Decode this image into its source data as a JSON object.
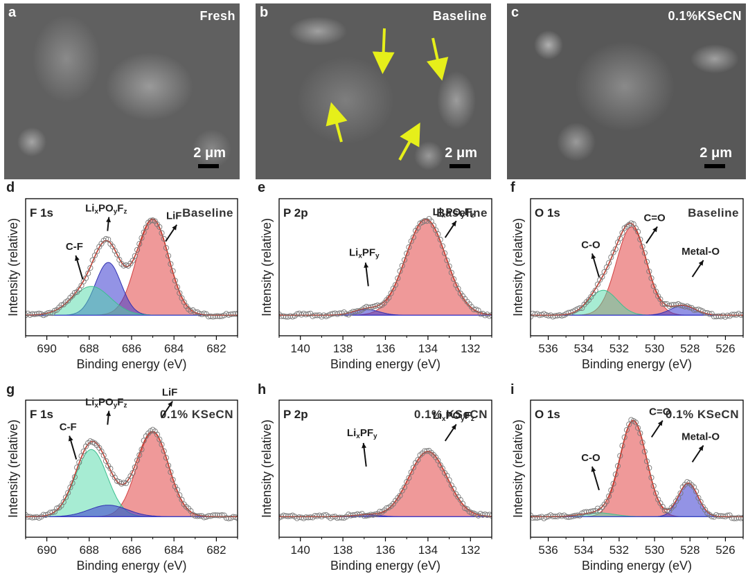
{
  "sem_panels": [
    {
      "label": "a",
      "condition": "Fresh",
      "scale": "2 μm"
    },
    {
      "label": "b",
      "condition": "Baseline",
      "scale": "2 μm"
    },
    {
      "label": "c",
      "condition": "0.1%KSeCN",
      "scale": "2 μm"
    }
  ],
  "colors": {
    "red": "#e05a5a",
    "blue": "#3a3ad0",
    "green": "#4fd9a8",
    "envelope": "#c0392b",
    "arrow_yellow": "#e6ef1a"
  },
  "chart_data": [
    {
      "panel": "d",
      "type": "area",
      "title": "F 1s",
      "condition": "Baseline",
      "xlabel": "Binding energy (eV)",
      "ylabel": "Intensity (relative)",
      "xlim": [
        691,
        681
      ],
      "xticks": [
        690,
        688,
        686,
        684,
        682
      ],
      "peaks": [
        {
          "name": "LiF",
          "center": 685.0,
          "height": 1.0,
          "width": 0.75,
          "color": "red"
        },
        {
          "name": "LixPOyFz",
          "center": 687.1,
          "height": 0.55,
          "width": 0.6,
          "color": "blue"
        },
        {
          "name": "C-F",
          "center": 687.9,
          "height": 0.3,
          "width": 0.9,
          "color": "green"
        }
      ],
      "annotations": [
        {
          "text": "C-F",
          "x": 688.7,
          "y": 0.68
        },
        {
          "text": "LixPOyFz",
          "x": 687.2,
          "y": 1.08
        },
        {
          "text": "LiF",
          "x": 684.0,
          "y": 1.0
        }
      ]
    },
    {
      "panel": "e",
      "type": "area",
      "title": "P 2p",
      "condition": "Baseline",
      "xlabel": "Binding energy (eV)",
      "ylabel": "Intensity (relative)",
      "xlim": [
        141,
        131
      ],
      "xticks": [
        140,
        138,
        136,
        134,
        132
      ],
      "peaks": [
        {
          "name": "LixPOyFz",
          "center": 134.1,
          "height": 1.0,
          "width": 0.95,
          "color": "red"
        },
        {
          "name": "LixPFy",
          "center": 136.9,
          "height": 0.06,
          "width": 0.6,
          "color": "blue"
        }
      ],
      "annotations": [
        {
          "text": "LixPFy",
          "x": 137.0,
          "y": 0.62
        },
        {
          "text": "LixPOyFz",
          "x": 132.8,
          "y": 1.04
        }
      ]
    },
    {
      "panel": "f",
      "type": "area",
      "title": "O 1s",
      "condition": "Baseline",
      "xlabel": "Binding energy (eV)",
      "ylabel": "Intensity (relative)",
      "xlim": [
        537,
        525
      ],
      "xticks": [
        536,
        534,
        532,
        530,
        528,
        526
      ],
      "peaks": [
        {
          "name": "C=O",
          "center": 531.3,
          "height": 0.92,
          "width": 0.85,
          "color": "red"
        },
        {
          "name": "C-O",
          "center": 532.9,
          "height": 0.26,
          "width": 0.8,
          "color": "green"
        },
        {
          "name": "Metal-O",
          "center": 528.4,
          "height": 0.1,
          "width": 0.7,
          "color": "blue"
        }
      ],
      "annotations": [
        {
          "text": "C-O",
          "x": 533.6,
          "y": 0.7
        },
        {
          "text": "C=O",
          "x": 530.0,
          "y": 0.98
        },
        {
          "text": "Metal-O",
          "x": 527.4,
          "y": 0.63
        }
      ]
    },
    {
      "panel": "g",
      "type": "area",
      "title": "F 1s",
      "condition": "0.1% KSeCN",
      "xlabel": "Binding energy (eV)",
      "ylabel": "Intensity (relative)",
      "xlim": [
        691,
        681
      ],
      "xticks": [
        690,
        688,
        686,
        684,
        682
      ],
      "peaks": [
        {
          "name": "LiF",
          "center": 685.0,
          "height": 0.88,
          "width": 0.75,
          "color": "red"
        },
        {
          "name": "C-F",
          "center": 687.9,
          "height": 0.7,
          "width": 0.75,
          "color": "green"
        },
        {
          "name": "LixPOyFz",
          "center": 687.1,
          "height": 0.12,
          "width": 0.9,
          "color": "blue"
        }
      ],
      "annotations": [
        {
          "text": "C-F",
          "x": 689.0,
          "y": 0.9
        },
        {
          "text": "LixPOyFz",
          "x": 687.2,
          "y": 1.16
        },
        {
          "text": "LiF",
          "x": 684.2,
          "y": 1.26
        }
      ]
    },
    {
      "panel": "h",
      "type": "area",
      "title": "P 2p",
      "condition": "0.1% KSeCN",
      "xlabel": "Binding energy (eV)",
      "ylabel": "Intensity (relative)",
      "xlim": [
        141,
        131
      ],
      "xticks": [
        140,
        138,
        136,
        134,
        132
      ],
      "peaks": [
        {
          "name": "LixPOyFz",
          "center": 134.0,
          "height": 0.68,
          "width": 0.9,
          "color": "red"
        },
        {
          "name": "LixPFy",
          "center": 136.9,
          "height": 0.02,
          "width": 0.6,
          "color": "blue"
        }
      ],
      "annotations": [
        {
          "text": "LixPFy",
          "x": 137.1,
          "y": 0.84
        },
        {
          "text": "LixPOyFz",
          "x": 132.8,
          "y": 1.02
        }
      ]
    },
    {
      "panel": "i",
      "type": "area",
      "title": "O 1s",
      "condition": "0.1% KSeCN",
      "xlabel": "Binding energy (eV)",
      "ylabel": "Intensity (relative)",
      "xlim": [
        537,
        525
      ],
      "xticks": [
        536,
        534,
        532,
        530,
        528,
        526
      ],
      "peaks": [
        {
          "name": "C=O",
          "center": 531.2,
          "height": 1.0,
          "width": 0.75,
          "color": "red"
        },
        {
          "name": "Metal-O",
          "center": 528.1,
          "height": 0.35,
          "width": 0.55,
          "color": "blue"
        },
        {
          "name": "C-O",
          "center": 533.2,
          "height": 0.04,
          "width": 0.9,
          "color": "green"
        }
      ],
      "annotations": [
        {
          "text": "C-O",
          "x": 533.6,
          "y": 0.58
        },
        {
          "text": "C=O",
          "x": 529.7,
          "y": 1.06
        },
        {
          "text": "Metal-O",
          "x": 527.4,
          "y": 0.8
        }
      ]
    }
  ]
}
